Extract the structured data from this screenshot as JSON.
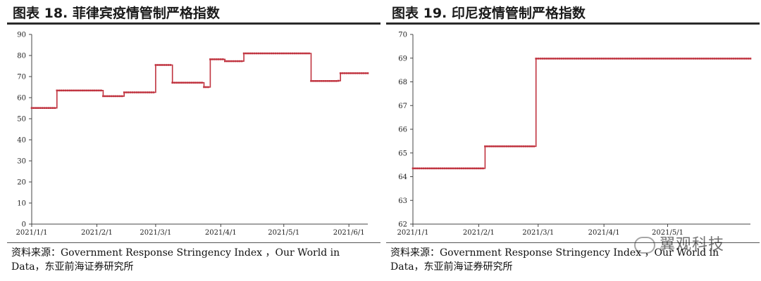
{
  "watermark": "翼观科技",
  "line_color": "#c0333f",
  "chart_data": [
    {
      "type": "line",
      "title": "图表 18. 菲律宾疫情管制严格指数",
      "ylim": [
        0,
        90
      ],
      "yticks": [
        0,
        10,
        20,
        30,
        40,
        50,
        60,
        70,
        80,
        90
      ],
      "xlim": [
        "2021-01-01",
        "2021-06-10"
      ],
      "xticks": [
        {
          "value": "2021-01-01",
          "label": "2021/1/1"
        },
        {
          "value": "2021-02-01",
          "label": "2021/2/1"
        },
        {
          "value": "2021-03-01",
          "label": "2021/3/1"
        },
        {
          "value": "2021-04-01",
          "label": "2021/4/1"
        },
        {
          "value": "2021-05-01",
          "label": "2021/5/1"
        },
        {
          "value": "2021-06-01",
          "label": "2021/6/1"
        }
      ],
      "series": [
        {
          "steps": [
            {
              "from": "2021-01-01",
              "value": 55.1
            },
            {
              "from": "2021-01-13",
              "value": 63.4
            },
            {
              "from": "2021-02-04",
              "value": 60.7
            },
            {
              "from": "2021-02-14",
              "value": 62.5
            },
            {
              "from": "2021-03-01",
              "value": 75.5
            },
            {
              "from": "2021-03-09",
              "value": 67.1
            },
            {
              "from": "2021-03-24",
              "value": 65.0
            },
            {
              "from": "2021-03-27",
              "value": 78.2
            },
            {
              "from": "2021-04-03",
              "value": 77.3
            },
            {
              "from": "2021-04-12",
              "value": 81.0
            },
            {
              "from": "2021-05-14",
              "value": 67.9
            },
            {
              "from": "2021-05-27",
              "value": 68.0
            },
            {
              "from": "2021-05-28",
              "value": 71.6
            }
          ],
          "end": "2021-06-10"
        }
      ],
      "source": "资料来源：Government Response Stringency Index ，Our World in Data，东亚前海证券研究所"
    },
    {
      "type": "line",
      "title": "图表 19. 印尼疫情管制严格指数",
      "ylim": [
        62,
        70
      ],
      "yticks": [
        62,
        63,
        64,
        65,
        66,
        67,
        68,
        69,
        70
      ],
      "xlim": [
        "2021-01-01",
        "2021-06-09"
      ],
      "xticks": [
        {
          "value": "2021-01-01",
          "label": "2021/1/1"
        },
        {
          "value": "2021-02-01",
          "label": "2021/2/1"
        },
        {
          "value": "2021-03-01",
          "label": "2021/3/1"
        },
        {
          "value": "2021-04-01",
          "label": "2021/4/1"
        },
        {
          "value": "2021-05-01",
          "label": "2021/5/1"
        }
      ],
      "series": [
        {
          "steps": [
            {
              "from": "2021-01-01",
              "value": 64.35
            },
            {
              "from": "2021-02-04",
              "value": 65.28
            },
            {
              "from": "2021-02-28",
              "value": 68.98
            }
          ],
          "end": "2021-06-09"
        }
      ],
      "source": "资料来源：Government Response Stringency Index ，Our World in Data，东亚前海证券研究所"
    }
  ]
}
